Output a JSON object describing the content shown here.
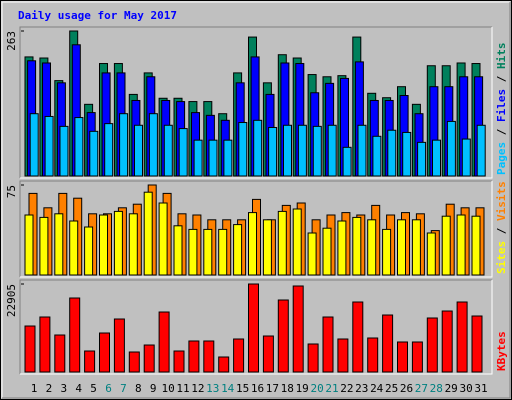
{
  "chart_data": [
    {
      "type": "bar",
      "title": "Daily usage for May 2017",
      "ylim": [
        0,
        263
      ],
      "yticks": [
        263
      ],
      "legend_separator": " / ",
      "series": [
        {
          "name": "Hits",
          "color": "#00805c",
          "values": [
            216,
            214,
            173,
            263,
            130,
            204,
            204,
            148,
            187,
            141,
            141,
            135,
            135,
            113,
            187,
            252,
            169,
            220,
            214,
            184,
            180,
            182,
            252,
            150,
            142,
            162,
            130,
            200,
            200,
            205,
            204
          ]
        },
        {
          "name": "Files",
          "color": "#0000ff",
          "values": [
            209,
            205,
            169,
            238,
            115,
            187,
            187,
            137,
            180,
            137,
            135,
            115,
            110,
            101,
            169,
            216,
            148,
            205,
            204,
            151,
            168,
            177,
            207,
            137,
            137,
            146,
            113,
            162,
            162,
            180,
            180
          ]
        },
        {
          "name": "Pages",
          "color": "#00c0ff",
          "values": [
            113,
            108,
            90,
            106,
            81,
            95,
            113,
            92,
            113,
            92,
            86,
            65,
            65,
            65,
            97,
            101,
            88,
            92,
            92,
            90,
            92,
            52,
            92,
            72,
            83,
            79,
            61,
            65,
            99,
            67,
            92
          ]
        }
      ]
    },
    {
      "type": "bar",
      "ylim": [
        0,
        75
      ],
      "yticks": [
        75
      ],
      "legend_separator": " / ",
      "series": [
        {
          "name": "Visits",
          "color": "#ff8000",
          "values": [
            68,
            56,
            68,
            64,
            51,
            51,
            56,
            59,
            75,
            68,
            51,
            50,
            46,
            46,
            46,
            63,
            46,
            58,
            60,
            46,
            50,
            52,
            50,
            58,
            50,
            52,
            51,
            37,
            59,
            56,
            56
          ]
        },
        {
          "name": "Sites",
          "color": "#ffff00",
          "values": [
            50,
            48,
            51,
            45,
            40,
            50,
            53,
            51,
            69,
            60,
            41,
            38,
            38,
            38,
            42,
            52,
            46,
            53,
            55,
            35,
            39,
            45,
            48,
            46,
            38,
            46,
            46,
            35,
            49,
            50,
            49
          ]
        }
      ]
    },
    {
      "type": "bar",
      "ylim": [
        0,
        22905
      ],
      "yticks": [
        22905
      ],
      "categories": [
        "1",
        "2",
        "3",
        "4",
        "5",
        "6",
        "7",
        "8",
        "9",
        "10",
        "11",
        "12",
        "13",
        "14",
        "15",
        "16",
        "17",
        "18",
        "19",
        "20",
        "21",
        "22",
        "23",
        "24",
        "25",
        "26",
        "27",
        "28",
        "29",
        "30",
        "31"
      ],
      "label_colors": [
        "#000000",
        "#000000",
        "#000000",
        "#000000",
        "#000000",
        "#008080",
        "#008080",
        "#000000",
        "#000000",
        "#000000",
        "#000000",
        "#000000",
        "#008080",
        "#008080",
        "#000000",
        "#000000",
        "#000000",
        "#000000",
        "#000000",
        "#008080",
        "#008080",
        "#000000",
        "#000000",
        "#000000",
        "#000000",
        "#000000",
        "#008080",
        "#008080",
        "#000000",
        "#000000",
        "#000000"
      ],
      "series": [
        {
          "name": "KBytes",
          "color": "#ff0000",
          "values": [
            11970,
            14315,
            9630,
            19260,
            5465,
            10150,
            13795,
            5205,
            7025,
            15615,
            5465,
            8070,
            8070,
            3905,
            8590,
            22905,
            9370,
            18740,
            22385,
            7290,
            14315,
            8590,
            18220,
            8850,
            14835,
            7810,
            7810,
            14055,
            15875,
            18220,
            14575
          ]
        }
      ]
    }
  ]
}
